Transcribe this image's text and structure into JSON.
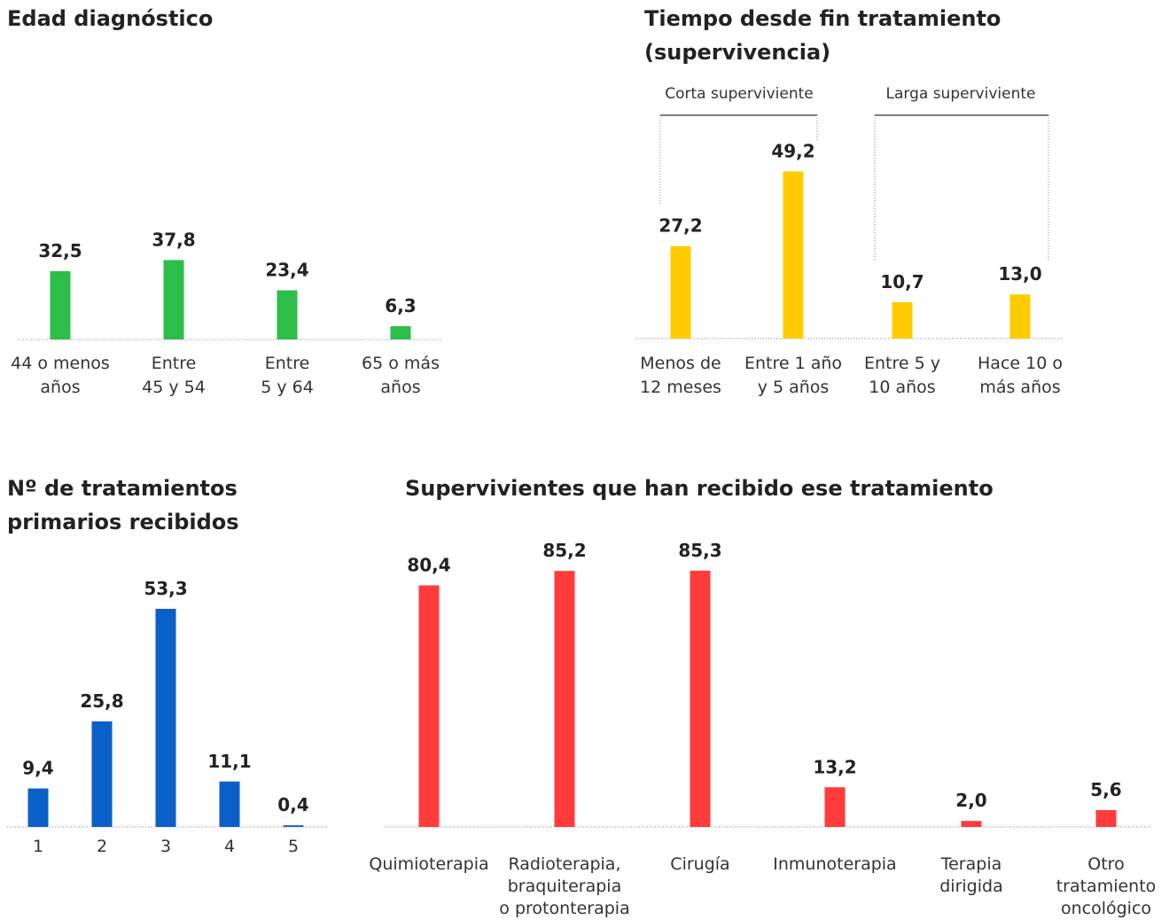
{
  "chart_data": [
    {
      "type": "bar",
      "title": "Edad diagnóstico",
      "categories": [
        "44 o menos\naños",
        "Entre\n45 y 54",
        "Entre\n5 y 64",
        "65 o más\naños"
      ],
      "values": [
        32.5,
        37.8,
        23.4,
        6.3
      ],
      "value_labels": [
        "32,5",
        "37,8",
        "23,4",
        "6,3"
      ],
      "color": "#2dbe4a",
      "ylim": [
        0,
        100
      ]
    },
    {
      "type": "bar",
      "title": "Tiempo desde fin tratamiento\n(supervivencia)",
      "annotations": [
        "Corta superviviente",
        "Larga superviviente"
      ],
      "categories": [
        "Menos de\n12 meses",
        "Entre 1 año\ny 5 años",
        "Entre 5 y\n10 años",
        "Hace 10 o\nmás años"
      ],
      "values": [
        27.2,
        49.2,
        10.7,
        13.0
      ],
      "value_labels": [
        "27,2",
        "49,2",
        "10,7",
        "13,0"
      ],
      "color": "#ffcc00",
      "ylim": [
        0,
        60
      ]
    },
    {
      "type": "bar",
      "title": "Nº de tratamientos\nprimarios recibidos",
      "categories": [
        "1",
        "2",
        "3",
        "4",
        "5"
      ],
      "values": [
        9.4,
        25.8,
        53.3,
        11.1,
        0.4
      ],
      "value_labels": [
        "9,4",
        "25,8",
        "53,3",
        "11,1",
        "0,4"
      ],
      "color": "#0b5fc8",
      "ylim": [
        0,
        60
      ]
    },
    {
      "type": "bar",
      "title": "Supervivientes que han recibido ese tratamiento",
      "categories": [
        "Quimioterapia",
        "Radioterapia,\nbraquiterapia\no protonterapia",
        "Cirugía",
        "Inmunoterapia",
        "Terapia\ndirigida",
        "Otro\ntratamiento\noncológico"
      ],
      "values": [
        80.4,
        85.2,
        85.3,
        13.2,
        2.0,
        5.6
      ],
      "value_labels": [
        "80,4",
        "85,2",
        "85,3",
        "13,2",
        "2,0",
        "5,6"
      ],
      "color": "#ff3b3b",
      "ylim": [
        0,
        100
      ]
    }
  ]
}
